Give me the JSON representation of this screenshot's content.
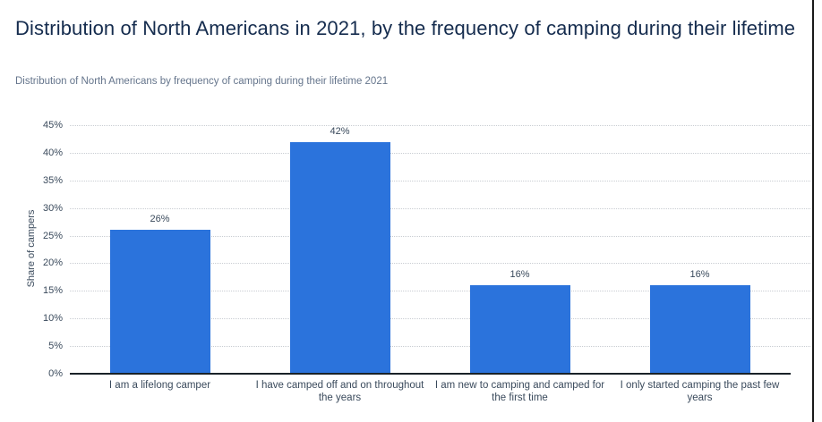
{
  "header": {
    "title": "Distribution of North Americans in 2021, by the frequency of camping during their lifetime",
    "subtitle": "Distribution of North Americans by frequency of camping during their lifetime 2021"
  },
  "chart_data": {
    "type": "bar",
    "title": "Distribution of North Americans in 2021, by the frequency of camping during their lifetime",
    "subtitle": "Distribution of North Americans by frequency of camping during their lifetime 2021",
    "categories": [
      "I am a lifelong camper",
      "I have camped off and on throughout the years",
      "I am new to camping and camped for the first time",
      "I only started camping the past few years"
    ],
    "values": [
      26,
      42,
      16,
      16
    ],
    "value_labels": [
      "26%",
      "42%",
      "16%",
      "16%"
    ],
    "xlabel": "",
    "ylabel": "Share of campers",
    "ylim": [
      0,
      45
    ],
    "ytick_step": 5,
    "ytick_labels": [
      "0%",
      "5%",
      "10%",
      "15%",
      "20%",
      "25%",
      "30%",
      "35%",
      "40%",
      "45%"
    ],
    "grid": "horizontal-dotted",
    "legend": "none"
  },
  "colors": {
    "bar": "#2B73DC",
    "title": "#152C4E",
    "subtitle": "#65758C",
    "axis_text": "#3A4A5C",
    "gridline": "#C9CDD2",
    "axis_line": "#1A2228",
    "background": "#FFFFFF"
  }
}
